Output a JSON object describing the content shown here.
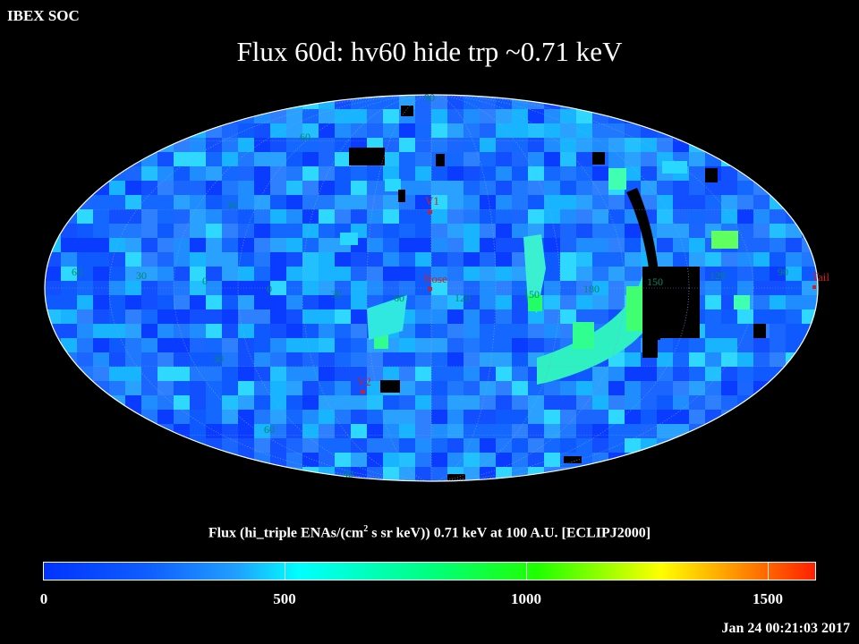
{
  "header": {
    "organization": "IBEX SOC",
    "title": "Flux   60d: hv60 hide trp ~0.71 keV"
  },
  "map": {
    "projection": "Mollweide (ecliptic J2000)",
    "latitude_labels": [
      "90",
      "60",
      "30",
      "0",
      "30",
      "60",
      "90"
    ],
    "longitude_labels": [
      "60",
      "30",
      "0",
      "30",
      "60",
      "90",
      "120",
      "150",
      "180",
      "150",
      "120",
      "90"
    ],
    "markers": {
      "v1": "V1",
      "v2": "V2",
      "nose": "Nose",
      "tail": "Tail"
    },
    "colors": {
      "background": "#000000",
      "marker": "#cc2222",
      "grid_label": "#008a6a",
      "gap": "#000000"
    }
  },
  "colorbar": {
    "title_prefix": "Flux (hi_triple ENAs/(cm",
    "title_sup": "2",
    "title_suffix": " s sr keV))  0.71 keV at 100 A.U. [ECLIPJ2000]",
    "labels": [
      "0",
      "500",
      "1000",
      "1500"
    ],
    "range": [
      0,
      1600
    ]
  },
  "footer": {
    "timestamp": "Jan 24 00:21:03 2017"
  }
}
